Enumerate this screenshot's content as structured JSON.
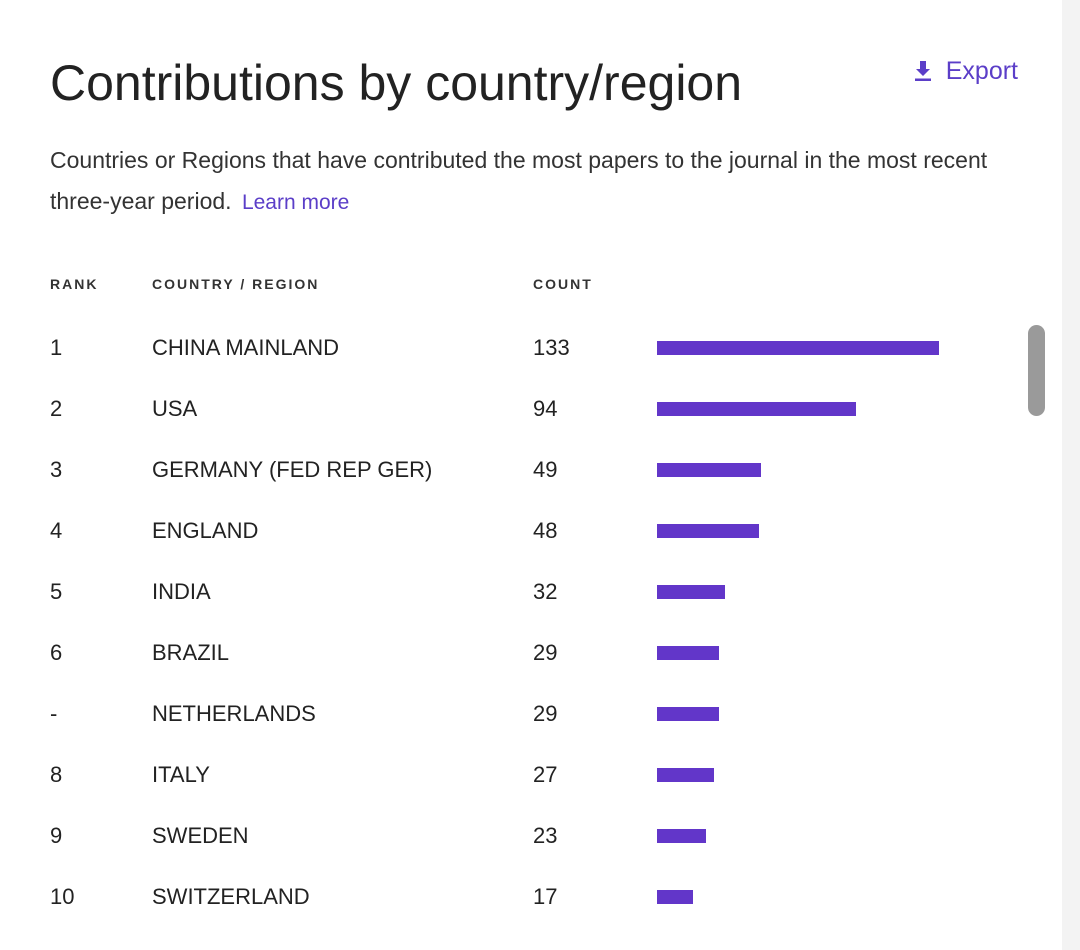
{
  "header": {
    "title": "Contributions by country/region",
    "export_label": "Export"
  },
  "description": {
    "text": "Countries or Regions that have contributed the most papers to the journal in the most recent three-year period.",
    "learn_more": "Learn more"
  },
  "table": {
    "columns": [
      "RANK",
      "COUNTRY / REGION",
      "COUNT"
    ],
    "max_count": 133,
    "rows": [
      {
        "rank": "1",
        "country": "CHINA MAINLAND",
        "count": 133
      },
      {
        "rank": "2",
        "country": "USA",
        "count": 94
      },
      {
        "rank": "3",
        "country": "GERMANY (FED REP GER)",
        "count": 49
      },
      {
        "rank": "4",
        "country": "ENGLAND",
        "count": 48
      },
      {
        "rank": "5",
        "country": "INDIA",
        "count": 32
      },
      {
        "rank": "6",
        "country": "BRAZIL",
        "count": 29
      },
      {
        "rank": "-",
        "country": "NETHERLANDS",
        "count": 29
      },
      {
        "rank": "8",
        "country": "ITALY",
        "count": 27
      },
      {
        "rank": "9",
        "country": "SWEDEN",
        "count": 23
      },
      {
        "rank": "10",
        "country": "SWITZERLAND",
        "count": 17
      }
    ]
  },
  "colors": {
    "accent": "#5b3ec8",
    "bar": "#6236c9"
  },
  "icons": {
    "export": "download-icon"
  }
}
